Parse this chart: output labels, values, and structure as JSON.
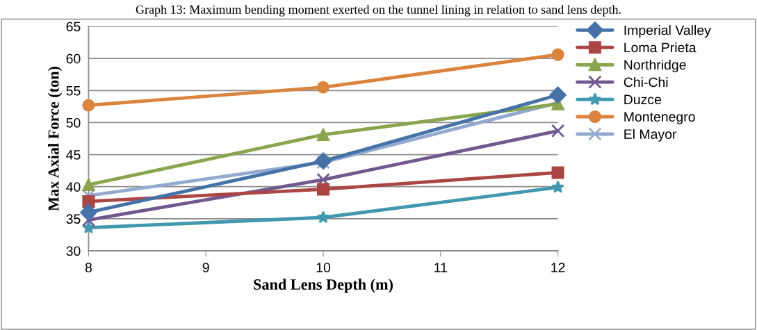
{
  "chart_data": {
    "type": "line",
    "title": "Graph 13: Maximum bending moment exerted on the tunnel lining in relation to sand lens depth.",
    "xlabel": "Sand Lens Depth (m)",
    "ylabel": "Max Axial Force (ton)",
    "x": [
      8,
      10,
      12
    ],
    "xlim": [
      8,
      12
    ],
    "xticks": [
      8,
      9,
      10,
      11,
      12
    ],
    "ylim": [
      30,
      65
    ],
    "yticks": [
      30,
      35,
      40,
      45,
      50,
      55,
      60,
      65
    ],
    "grid": "y",
    "legend": "right",
    "series": [
      {
        "name": "Imperial Valley",
        "color": "#4572a7",
        "marker": "diamond",
        "values": [
          36.0,
          44.0,
          54.3
        ]
      },
      {
        "name": "Loma Prieta",
        "color": "#aa4643",
        "marker": "square",
        "values": [
          37.7,
          39.6,
          42.2
        ]
      },
      {
        "name": "Northridge",
        "color": "#89a54e",
        "marker": "triangle",
        "values": [
          40.3,
          48.1,
          52.9
        ]
      },
      {
        "name": "Chi-Chi",
        "color": "#71588f",
        "marker": "cross",
        "values": [
          34.8,
          41.1,
          48.7
        ]
      },
      {
        "name": "Duzce",
        "color": "#4198af",
        "marker": "star",
        "values": [
          33.6,
          35.2,
          39.9
        ]
      },
      {
        "name": "Montenegro",
        "color": "#db843d",
        "marker": "circle",
        "values": [
          52.7,
          55.5,
          60.6
        ]
      },
      {
        "name": "El Mayor",
        "color": "#93a9cf",
        "marker": "cross",
        "values": [
          38.6,
          43.8,
          53.1
        ]
      }
    ]
  }
}
